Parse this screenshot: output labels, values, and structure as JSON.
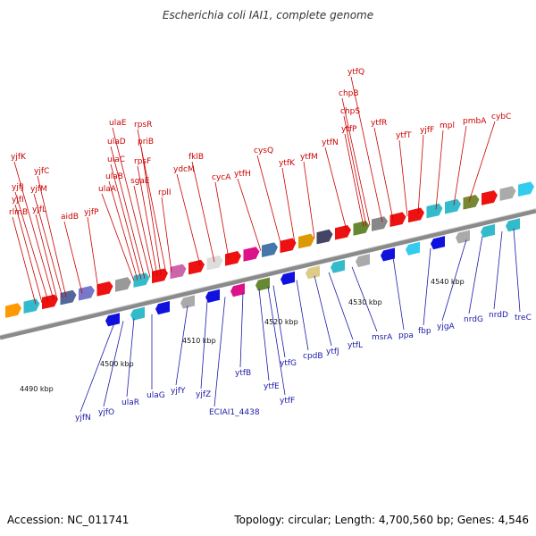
{
  "title": "Escherichia coli IAI1, complete genome",
  "footer": {
    "accession": "Accession: NC_011741",
    "summary": "Topology: circular; Length: 4,700,560 bp; Genes: 4,546"
  },
  "colors": {
    "forward_label": "#cc0000",
    "reverse_label": "#1a1aa8",
    "backbone": "#8a8a8a",
    "forward_arrow": "#ee1111",
    "reverse_arrow": "#1111dd"
  },
  "ticks": [
    "4490 kbp",
    "4500 kbp",
    "4510 kbp",
    "4520 kbp",
    "4530 kbp",
    "4540 kbp"
  ],
  "forward_genes": [
    "rlmB",
    "yjfI",
    "yjfJ",
    "yjfK",
    "yjfL",
    "yjfM",
    "yjfC",
    "aidB",
    "yjfP",
    "ulaA",
    "ulaB",
    "ulaC",
    "ulaD",
    "ulaE",
    "sgaE",
    "rpsF",
    "priB",
    "rpsR",
    "rplI",
    "ydcM",
    "fklB",
    "cycA",
    "ytfH",
    "cysQ",
    "ytfK",
    "ytfM",
    "ytfN",
    "ytfP",
    "chpS",
    "chpB",
    "ytfQ",
    "ytfR",
    "ytfT",
    "yjfF",
    "mpl",
    "pmbA",
    "cybC"
  ],
  "reverse_genes": [
    "yjfN",
    "yjfO",
    "ulaR",
    "ulaG",
    "yjfY",
    "yjfZ",
    "ECIAI1_4438",
    "ytfB",
    "ytfE",
    "ytfF",
    "ytfG",
    "cpdB",
    "ytfJ",
    "ytfL",
    "msrA",
    "ppa",
    "fbp",
    "yjgA",
    "nrdG",
    "nrdD",
    "treC"
  ]
}
